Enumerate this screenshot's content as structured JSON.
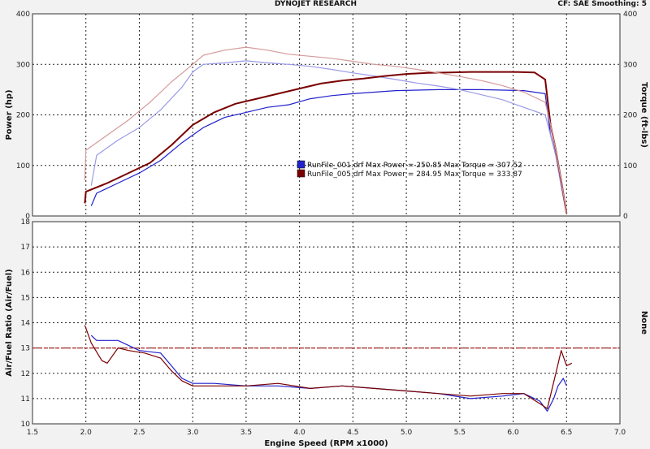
{
  "header": {
    "title": "DYNOJET RESEARCH",
    "settings": "CF: SAE  Smoothing: 5"
  },
  "colors": {
    "run1": "#2222cc",
    "run1_light": "#9a9ae8",
    "run2": "#7a0000",
    "run2_light": "#d59a9a",
    "target_line": "#aa2222"
  },
  "chart_data": [
    {
      "type": "line",
      "title": "",
      "xlabel": "",
      "ylabel": "Power (hp)",
      "y2label": "Torque (ft-lbs)",
      "xlim": [
        1.5,
        7.0
      ],
      "ylim": [
        0,
        400
      ],
      "y2lim": [
        0,
        400
      ],
      "x_ticks": [
        1.5,
        2.0,
        2.5,
        3.0,
        3.5,
        4.0,
        4.5,
        5.0,
        5.5,
        6.0,
        6.5,
        7.0
      ],
      "y_ticks": [
        0,
        100,
        200,
        300,
        400
      ],
      "y_ticks_right": [
        0,
        100,
        200,
        300,
        400
      ],
      "grid": true,
      "legend": [
        {
          "label": "RunFile_001.drf Max Power = 250.85 Max Torque = 307.52",
          "color_key": "run1"
        },
        {
          "label": "RunFile_005.drf Max Power = 284.95 Max Torque = 333.87",
          "color_key": "run2"
        }
      ],
      "series": [
        {
          "name": "RunFile_001.drf Power",
          "color_key": "run1",
          "x": [
            2.05,
            2.1,
            2.3,
            2.5,
            2.7,
            2.9,
            3.1,
            3.3,
            3.5,
            3.7,
            3.9,
            4.1,
            4.3,
            4.5,
            4.7,
            4.9,
            5.1,
            5.3,
            5.5,
            5.7,
            5.9,
            6.1,
            6.3,
            6.35,
            6.4,
            6.45,
            6.5
          ],
          "y": [
            20,
            45,
            65,
            85,
            110,
            145,
            175,
            195,
            205,
            215,
            220,
            232,
            238,
            242,
            245,
            248,
            249,
            250,
            250,
            250,
            249,
            248,
            242,
            160,
            120,
            60,
            5
          ]
        },
        {
          "name": "RunFile_001.drf Torque",
          "color_key": "run1_light",
          "x": [
            2.05,
            2.1,
            2.3,
            2.5,
            2.7,
            2.9,
            3.0,
            3.1,
            3.3,
            3.5,
            3.7,
            3.9,
            4.1,
            4.3,
            4.5,
            4.7,
            4.9,
            5.1,
            5.3,
            5.5,
            5.7,
            5.9,
            6.1,
            6.3,
            6.35,
            6.4,
            6.45,
            6.5
          ],
          "y": [
            60,
            120,
            150,
            175,
            210,
            255,
            285,
            300,
            303,
            307,
            303,
            300,
            296,
            290,
            283,
            277,
            270,
            263,
            257,
            250,
            240,
            230,
            215,
            200,
            160,
            120,
            60,
            5
          ]
        },
        {
          "name": "RunFile_005.drf Power",
          "color_key": "run2",
          "x": [
            1.99,
            2.0,
            2.2,
            2.4,
            2.6,
            2.8,
            3.0,
            3.2,
            3.4,
            3.6,
            3.8,
            4.0,
            4.2,
            4.4,
            4.6,
            4.8,
            5.0,
            5.2,
            5.4,
            5.6,
            5.8,
            6.0,
            6.2,
            6.3,
            6.35,
            6.4,
            6.45,
            6.5
          ],
          "y": [
            25,
            48,
            65,
            85,
            105,
            140,
            180,
            205,
            222,
            232,
            242,
            252,
            262,
            268,
            272,
            277,
            281,
            283,
            284,
            285,
            285,
            285,
            284,
            270,
            180,
            130,
            70,
            5
          ]
        },
        {
          "name": "RunFile_005.drf Torque",
          "color_key": "run2_light",
          "x": [
            1.99,
            2.0,
            2.2,
            2.4,
            2.6,
            2.8,
            3.0,
            3.1,
            3.3,
            3.5,
            3.7,
            3.9,
            4.1,
            4.3,
            4.5,
            4.7,
            4.9,
            5.1,
            5.3,
            5.5,
            5.7,
            5.9,
            6.1,
            6.3,
            6.35,
            6.4,
            6.45,
            6.5
          ],
          "y": [
            70,
            130,
            160,
            190,
            225,
            265,
            300,
            318,
            328,
            334,
            328,
            320,
            316,
            312,
            306,
            300,
            296,
            290,
            283,
            276,
            268,
            258,
            245,
            225,
            180,
            130,
            70,
            5
          ]
        }
      ]
    },
    {
      "type": "line",
      "title": "",
      "xlabel": "Engine Speed (RPM x1000)",
      "ylabel": "Air/Fuel Ratio (Air/Fuel)",
      "y2label": "None",
      "xlim": [
        1.5,
        7.0
      ],
      "ylim": [
        10,
        18
      ],
      "x_ticks": [
        1.5,
        2.0,
        2.5,
        3.0,
        3.5,
        4.0,
        4.5,
        5.0,
        5.5,
        6.0,
        6.5,
        7.0
      ],
      "y_ticks": [
        10,
        11,
        12,
        13,
        14,
        15,
        16,
        17,
        18
      ],
      "grid": true,
      "reference_line": {
        "y": 13,
        "color_key": "target_line"
      },
      "series": [
        {
          "name": "RunFile_001.drf AFR",
          "color_key": "run1",
          "x": [
            2.05,
            2.1,
            2.3,
            2.5,
            2.7,
            2.8,
            2.9,
            3.0,
            3.2,
            3.5,
            3.8,
            4.1,
            4.4,
            4.7,
            5.0,
            5.3,
            5.6,
            5.9,
            6.1,
            6.25,
            6.32,
            6.38,
            6.42,
            6.47,
            6.5
          ],
          "y": [
            13.5,
            13.3,
            13.3,
            12.9,
            12.8,
            12.3,
            11.8,
            11.6,
            11.6,
            11.5,
            11.5,
            11.4,
            11.5,
            11.4,
            11.3,
            11.2,
            11.0,
            11.1,
            11.2,
            10.9,
            10.5,
            11.0,
            11.5,
            11.8,
            11.5
          ]
        },
        {
          "name": "RunFile_005.drf AFR",
          "color_key": "run2",
          "x": [
            1.99,
            2.05,
            2.15,
            2.2,
            2.3,
            2.4,
            2.55,
            2.7,
            2.8,
            2.9,
            3.0,
            3.2,
            3.5,
            3.8,
            4.1,
            4.4,
            4.7,
            5.0,
            5.3,
            5.6,
            5.9,
            6.1,
            6.25,
            6.32,
            6.4,
            6.45,
            6.5,
            6.55
          ],
          "y": [
            13.9,
            13.2,
            12.5,
            12.4,
            13.0,
            12.9,
            12.8,
            12.6,
            12.1,
            11.7,
            11.5,
            11.5,
            11.5,
            11.6,
            11.4,
            11.5,
            11.4,
            11.3,
            11.2,
            11.1,
            11.2,
            11.2,
            10.8,
            10.6,
            12.0,
            12.9,
            12.3,
            12.4
          ]
        }
      ]
    }
  ]
}
